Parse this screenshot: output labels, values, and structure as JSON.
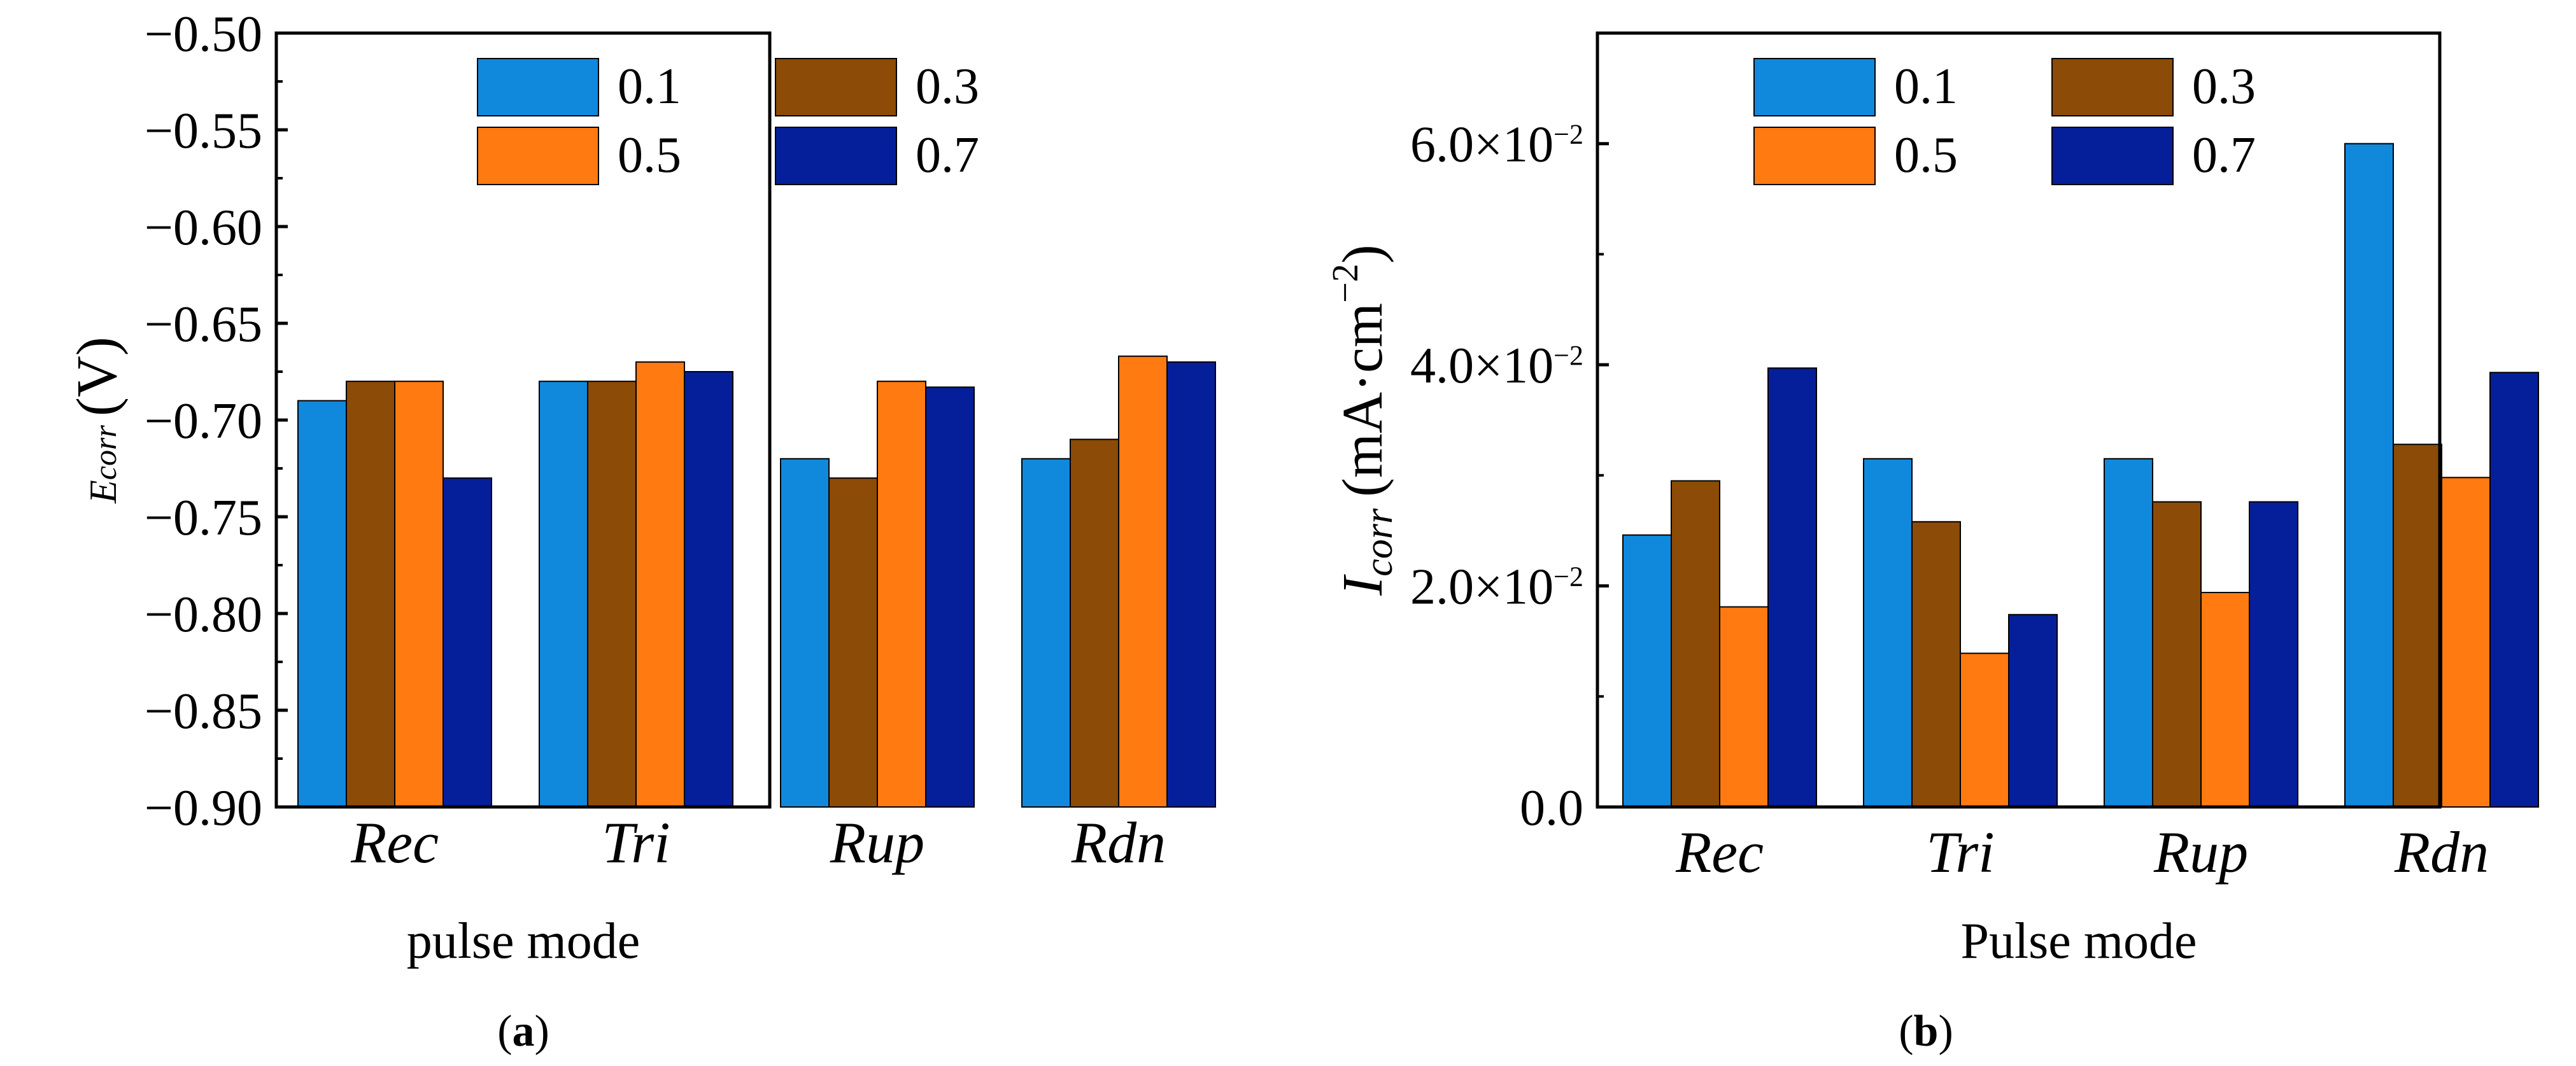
{
  "colors": {
    "s01": "#1088dc",
    "s03": "#8c4b06",
    "s05": "#ff7a10",
    "s07": "#051f9a"
  },
  "chart_data": [
    {
      "type": "bar",
      "panel_label": "(a)",
      "panel_letter": "a",
      "xlabel": "pulse mode",
      "ylabel_var": "E",
      "ylabel_sub": "corr",
      "ylabel_unit": "(V)",
      "categories": [
        "Rec",
        "Tri",
        "Rup",
        "Rdn"
      ],
      "ylim": [
        -0.9,
        -0.5
      ],
      "yticks": [
        "−0.50",
        "−0.55",
        "−0.60",
        "−0.65",
        "−0.70",
        "−0.75",
        "−0.80",
        "−0.85",
        "−0.90"
      ],
      "ytick_values": [
        -0.5,
        -0.55,
        -0.6,
        -0.65,
        -0.7,
        -0.75,
        -0.8,
        -0.85,
        -0.9
      ],
      "legend": [
        "0.1",
        "0.3",
        "0.5",
        "0.7"
      ],
      "legend_position": "top",
      "series": [
        {
          "name": "0.1",
          "values": [
            -0.69,
            -0.68,
            -0.72,
            -0.72
          ]
        },
        {
          "name": "0.3",
          "values": [
            -0.68,
            -0.68,
            -0.73,
            -0.71
          ]
        },
        {
          "name": "0.5",
          "values": [
            -0.68,
            -0.67,
            -0.68,
            -0.667
          ]
        },
        {
          "name": "0.7",
          "values": [
            -0.73,
            -0.675,
            -0.683,
            -0.67
          ]
        }
      ]
    },
    {
      "type": "bar",
      "panel_label": "(b)",
      "panel_letter": "b",
      "xlabel": "Pulse mode",
      "ylabel_var": "I",
      "ylabel_sub": "corr",
      "ylabel_unit": "(mA·cm",
      "ylabel_exp": "−2",
      "ylabel_close": ")",
      "categories": [
        "Rec",
        "Tri",
        "Rup",
        "Rdn"
      ],
      "ylim": [
        0,
        0.07
      ],
      "ytick_values": [
        0,
        0.02,
        0.04,
        0.06
      ],
      "yticks": [
        {
          "mantissa": "0.0",
          "exp": ""
        },
        {
          "mantissa": "2.0×10",
          "exp": "−2"
        },
        {
          "mantissa": "4.0×10",
          "exp": "−2"
        },
        {
          "mantissa": "6.0×10",
          "exp": "−2"
        }
      ],
      "legend": [
        "0.1",
        "0.3",
        "0.5",
        "0.7"
      ],
      "legend_position": "top",
      "series": [
        {
          "name": "0.1",
          "values": [
            0.0246,
            0.0315,
            0.0315,
            0.06
          ]
        },
        {
          "name": "0.3",
          "values": [
            0.0295,
            0.0258,
            0.0276,
            0.0328
          ]
        },
        {
          "name": "0.5",
          "values": [
            0.0181,
            0.0139,
            0.0194,
            0.0298
          ]
        },
        {
          "name": "0.7",
          "values": [
            0.0397,
            0.0174,
            0.0276,
            0.0393
          ]
        }
      ]
    }
  ]
}
